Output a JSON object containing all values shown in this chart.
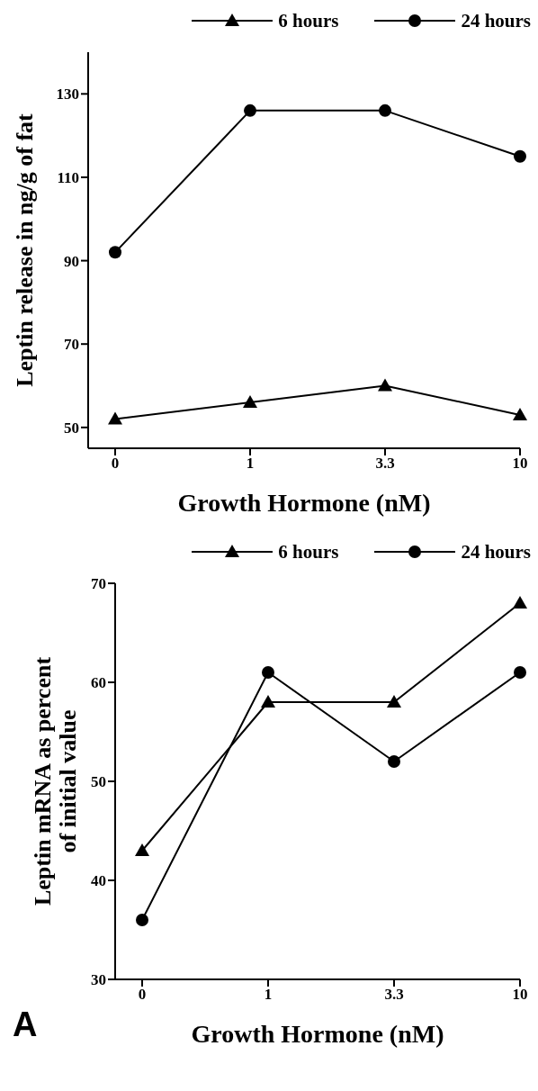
{
  "chart_data": [
    {
      "type": "line",
      "categories": [
        "0",
        "1",
        "3.3",
        "10"
      ],
      "xlabel": "Growth Hormone (nM)",
      "ylabel": "Leptin release in ng/g of fat",
      "ylim": [
        45,
        140
      ],
      "yticks": [
        50,
        70,
        90,
        110,
        130
      ],
      "legend": "top",
      "grid": false,
      "series": [
        {
          "name": "6 hours",
          "color": "#000000",
          "marker": "triangle",
          "values": [
            52,
            56,
            60,
            53
          ]
        },
        {
          "name": "24 hours",
          "color": "#000000",
          "marker": "circle",
          "values": [
            92,
            126,
            126,
            115
          ]
        }
      ]
    },
    {
      "type": "line",
      "categories": [
        "0",
        "1",
        "3.3",
        "10"
      ],
      "xlabel": "Growth Hormone (nM)",
      "ylabel": "Leptin mRNA as percent\nof initial value",
      "ylim": [
        30,
        70
      ],
      "yticks": [
        30,
        40,
        50,
        60,
        70
      ],
      "legend": "top",
      "grid": false,
      "annotations": [
        "A"
      ],
      "series": [
        {
          "name": "6 hours",
          "color": "#000000",
          "marker": "triangle",
          "values": [
            43,
            58,
            58,
            68
          ]
        },
        {
          "name": "24 hours",
          "color": "#000000",
          "marker": "circle",
          "values": [
            36,
            61,
            52,
            61
          ]
        }
      ]
    }
  ]
}
